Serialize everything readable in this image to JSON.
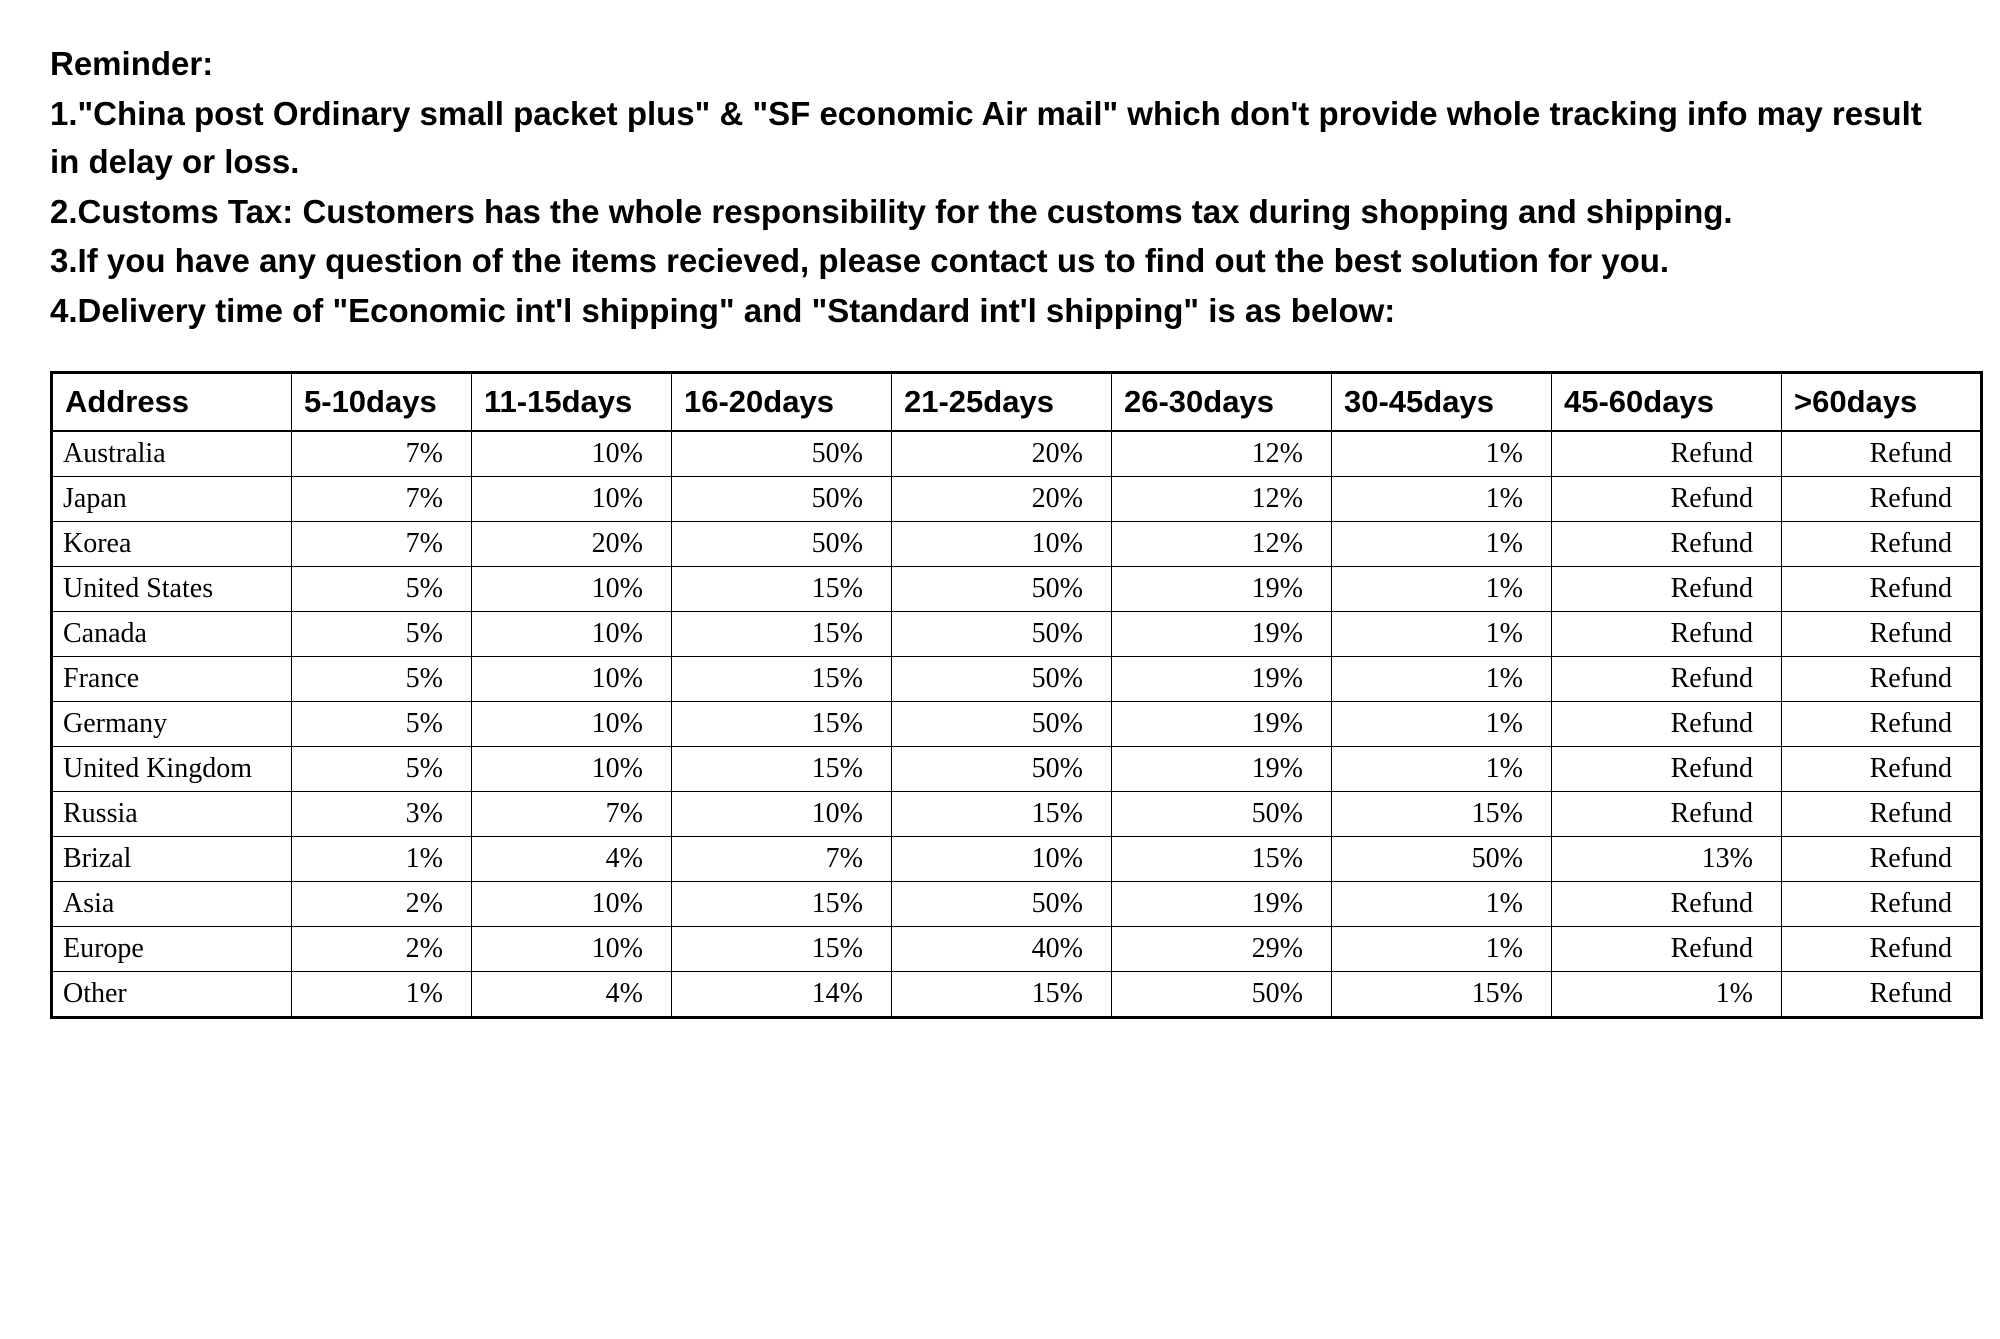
{
  "reminder": {
    "title": "Reminder:",
    "lines": [
      "1.\"China post Ordinary small packet plus\" & \"SF economic Air mail\" which don't provide whole tracking info may result in delay or loss.",
      "2.Customs Tax: Customers has the whole responsibility for the customs tax during shopping and shipping.",
      "3.If you have any question of the items recieved, please contact us to find out the best solution for you.",
      "4.Delivery time of \"Economic int'l shipping\" and \"Standard int'l shipping\" is as below:"
    ]
  },
  "table": {
    "columns": [
      "Address",
      "5-10days",
      "11-15days",
      "16-20days",
      "21-25days",
      "26-30days",
      "30-45days",
      "45-60days",
      ">60days"
    ],
    "rows": [
      [
        "Australia",
        "7%",
        "10%",
        "50%",
        "20%",
        "12%",
        "1%",
        "Refund",
        "Refund"
      ],
      [
        "Japan",
        "7%",
        "10%",
        "50%",
        "20%",
        "12%",
        "1%",
        "Refund",
        "Refund"
      ],
      [
        "Korea",
        "7%",
        "20%",
        "50%",
        "10%",
        "12%",
        "1%",
        "Refund",
        "Refund"
      ],
      [
        "United States",
        "5%",
        "10%",
        "15%",
        "50%",
        "19%",
        "1%",
        "Refund",
        "Refund"
      ],
      [
        "Canada",
        "5%",
        "10%",
        "15%",
        "50%",
        "19%",
        "1%",
        "Refund",
        "Refund"
      ],
      [
        "France",
        "5%",
        "10%",
        "15%",
        "50%",
        "19%",
        "1%",
        "Refund",
        "Refund"
      ],
      [
        "Germany",
        "5%",
        "10%",
        "15%",
        "50%",
        "19%",
        "1%",
        "Refund",
        "Refund"
      ],
      [
        "United Kingdom",
        "5%",
        "10%",
        "15%",
        "50%",
        "19%",
        "1%",
        "Refund",
        "Refund"
      ],
      [
        "Russia",
        "3%",
        "7%",
        "10%",
        "15%",
        "50%",
        "15%",
        "Refund",
        "Refund"
      ],
      [
        "Brizal",
        "1%",
        "4%",
        "7%",
        "10%",
        "15%",
        "50%",
        "13%",
        "Refund"
      ],
      [
        "Asia",
        "2%",
        "10%",
        "15%",
        "50%",
        "19%",
        "1%",
        "Refund",
        "Refund"
      ],
      [
        "Europe",
        "2%",
        "10%",
        "15%",
        "40%",
        "29%",
        "1%",
        "Refund",
        "Refund"
      ],
      [
        "Other",
        "1%",
        "4%",
        "14%",
        "15%",
        "50%",
        "15%",
        "1%",
        "Refund"
      ]
    ],
    "header_font_size": 31,
    "body_font_size": 28,
    "border_color": "#000000",
    "background_color": "#ffffff",
    "body_font_family": "serif",
    "header_font_family": "sans-serif"
  }
}
